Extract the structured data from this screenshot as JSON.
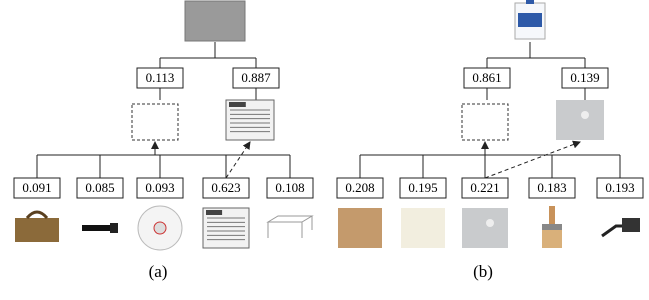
{
  "panels": [
    {
      "caption": "(a)",
      "top_probs": [
        "0.113",
        "0.887"
      ],
      "bottom_probs": [
        "0.091",
        "0.085",
        "0.093",
        "0.623",
        "0.108"
      ]
    },
    {
      "caption": "(b)",
      "top_probs": [
        "0.861",
        "0.139"
      ],
      "bottom_probs": [
        "0.208",
        "0.195",
        "0.221",
        "0.183",
        "0.193"
      ]
    }
  ]
}
